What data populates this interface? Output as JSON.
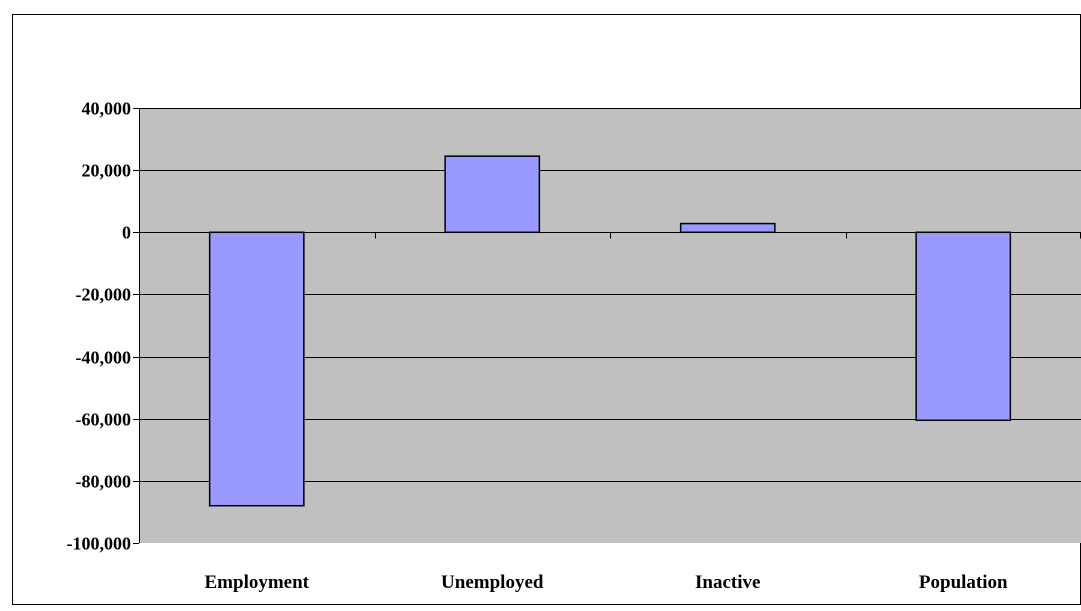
{
  "colors": {
    "plot_background": "#c0c0c0",
    "bar_fill": "#9999ff",
    "bar_stroke": "#000000",
    "gridline": "#000000",
    "chart_border": "#000000"
  },
  "chart_data": {
    "type": "bar",
    "title": "",
    "xlabel": "",
    "ylabel": "",
    "categories": [
      "Employment",
      "Unemployed",
      "Inactive",
      "Population"
    ],
    "values": [
      -88000,
      24500,
      2800,
      -60500
    ],
    "ylim": [
      -100000,
      40000
    ],
    "yticks": [
      40000,
      20000,
      0,
      -20000,
      -40000,
      -60000,
      -80000,
      -100000
    ],
    "ytick_labels": [
      "40,000",
      "20,000",
      "0",
      "-20,000",
      "-40,000",
      "-60,000",
      "-80,000",
      "-100,000"
    ],
    "grid": true,
    "legend": "none"
  }
}
